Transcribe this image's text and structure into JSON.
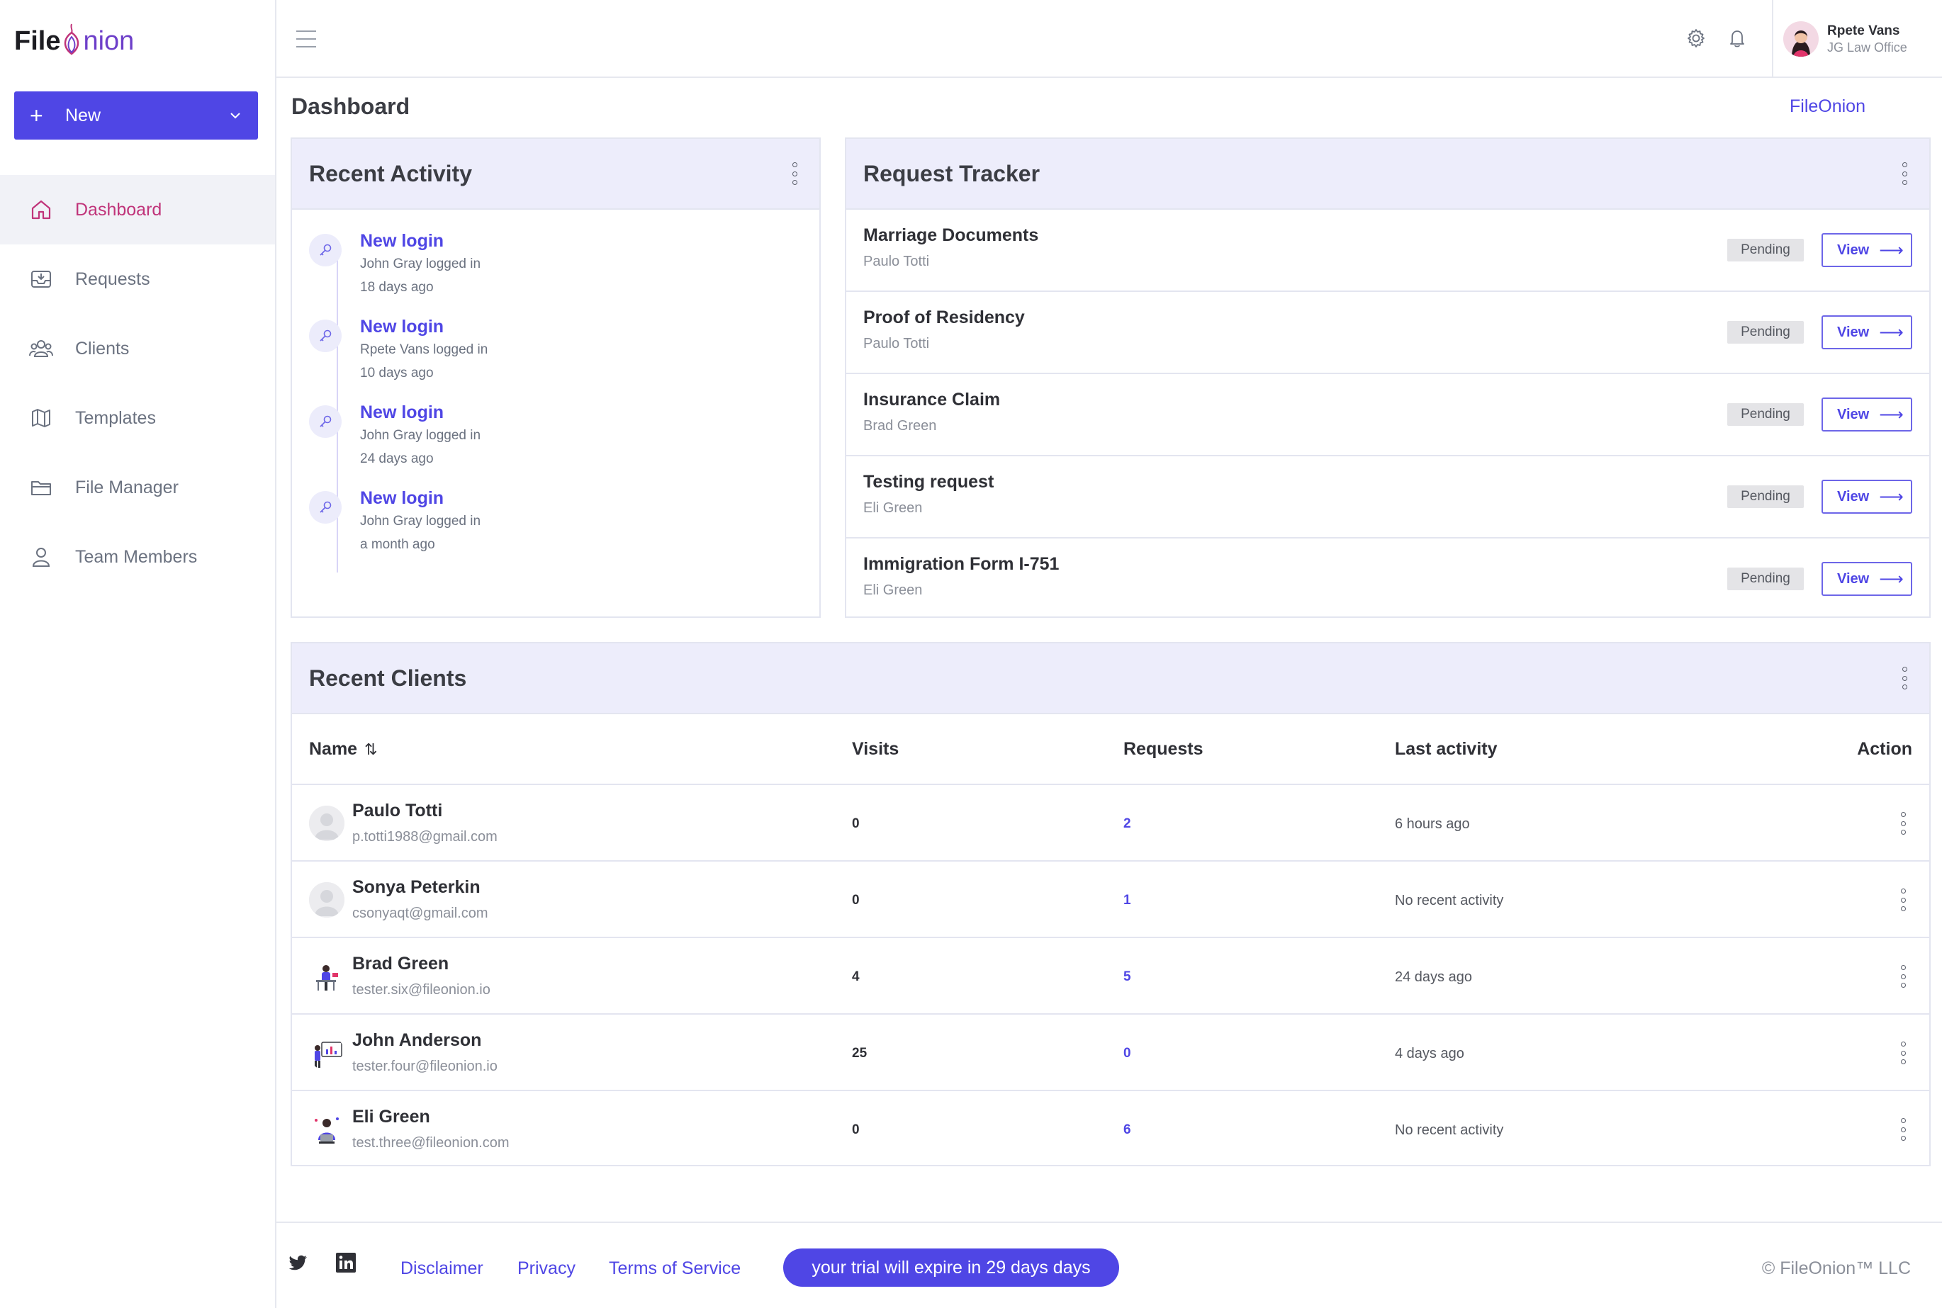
{
  "app": {
    "logo_file": "File",
    "logo_o": "O",
    "logo_rest": "nion"
  },
  "sidebar": {
    "new_button": "New",
    "items": [
      {
        "label": "Dashboard",
        "icon": "home-icon",
        "active": true
      },
      {
        "label": "Requests",
        "icon": "inbox-icon",
        "active": false
      },
      {
        "label": "Clients",
        "icon": "users-icon",
        "active": false
      },
      {
        "label": "Templates",
        "icon": "map-icon",
        "active": false
      },
      {
        "label": "File Manager",
        "icon": "folder-icon",
        "active": false
      },
      {
        "label": "Team Members",
        "icon": "user-icon",
        "active": false
      }
    ]
  },
  "topbar": {
    "user_name": "Rpete Vans",
    "user_org": "JG Law Office"
  },
  "page": {
    "title": "Dashboard",
    "brand_link": "FileOnion"
  },
  "recent_activity": {
    "title": "Recent Activity",
    "items": [
      {
        "title": "New login",
        "detail": "John Gray logged in",
        "time": "18 days ago"
      },
      {
        "title": "New login",
        "detail": "Rpete Vans logged in",
        "time": "10 days ago"
      },
      {
        "title": "New login",
        "detail": "John Gray logged in",
        "time": "24 days ago"
      },
      {
        "title": "New login",
        "detail": "John Gray logged in",
        "time": "a month ago"
      }
    ]
  },
  "request_tracker": {
    "title": "Request Tracker",
    "view_label": "View",
    "items": [
      {
        "title": "Marriage Documents",
        "client": "Paulo Totti",
        "status": "Pending"
      },
      {
        "title": "Proof of Residency",
        "client": "Paulo Totti",
        "status": "Pending"
      },
      {
        "title": "Insurance Claim",
        "client": "Brad Green",
        "status": "Pending"
      },
      {
        "title": "Testing request",
        "client": "Eli Green",
        "status": "Pending"
      },
      {
        "title": "Immigration Form I-751",
        "client": "Eli Green",
        "status": "Pending"
      }
    ]
  },
  "recent_clients": {
    "title": "Recent Clients",
    "columns": {
      "name": "Name",
      "visits": "Visits",
      "requests": "Requests",
      "last_activity": "Last activity",
      "action": "Action"
    },
    "rows": [
      {
        "name": "Paulo Totti",
        "email": "p.totti1988@gmail.com",
        "visits": "0",
        "requests": "2",
        "last_activity": "6 hours ago",
        "avatar": "default"
      },
      {
        "name": "Sonya Peterkin",
        "email": "csonyaqt@gmail.com",
        "visits": "0",
        "requests": "1",
        "last_activity": "No recent activity",
        "avatar": "default"
      },
      {
        "name": "Brad Green",
        "email": "tester.six@fileonion.io",
        "visits": "4",
        "requests": "5",
        "last_activity": "24 days ago",
        "avatar": "illustration"
      },
      {
        "name": "John Anderson",
        "email": "tester.four@fileonion.io",
        "visits": "25",
        "requests": "0",
        "last_activity": "4 days ago",
        "avatar": "illustration"
      },
      {
        "name": "Eli Green",
        "email": "test.three@fileonion.com",
        "visits": "0",
        "requests": "6",
        "last_activity": "No recent activity",
        "avatar": "illustration"
      }
    ]
  },
  "footer": {
    "links": [
      "Disclaimer",
      "Privacy",
      "Terms of Service"
    ],
    "trial": "your trial will expire in 29 days days",
    "copyright": "© FileOnion™ LLC"
  },
  "colors": {
    "primary": "#4f46e5",
    "accent": "#c0347a",
    "card_header": "#ededfb"
  }
}
